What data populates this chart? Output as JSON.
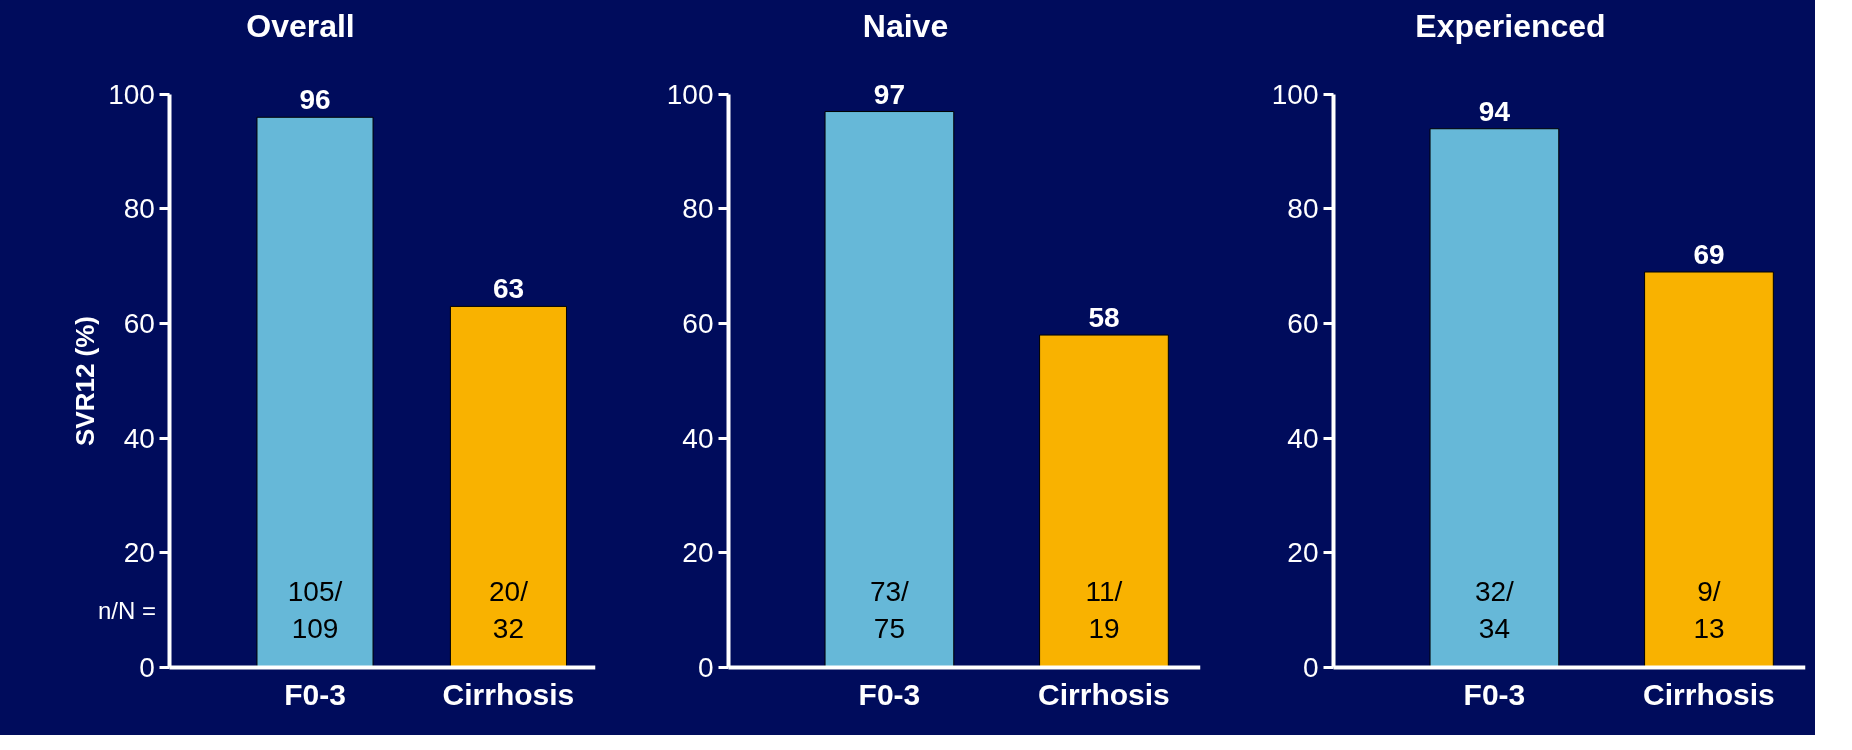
{
  "chart_data": [
    {
      "type": "bar",
      "title": "Overall",
      "ylabel": "SVR12 (%)",
      "categories": [
        "F0-3",
        "Cirrhosis"
      ],
      "values": [
        96,
        63
      ],
      "colors": [
        "#66b8d8",
        "#f9b200"
      ],
      "ylim": [
        0,
        100
      ],
      "yticks": [
        0,
        20,
        40,
        60,
        80,
        100
      ],
      "data_labels": true,
      "annotations": [
        "105/\n109",
        "20/\n32",
        "n/N ="
      ]
    },
    {
      "type": "bar",
      "title": "Naive",
      "categories": [
        "F0-3",
        "Cirrhosis"
      ],
      "values": [
        97,
        58
      ],
      "colors": [
        "#66b8d8",
        "#f9b200"
      ],
      "ylim": [
        0,
        100
      ],
      "yticks": [
        0,
        20,
        40,
        60,
        80,
        100
      ],
      "data_labels": true,
      "annotations": [
        "73/\n75",
        "11/\n19"
      ]
    },
    {
      "type": "bar",
      "title": "Experienced",
      "categories": [
        "F0-3",
        "Cirrhosis"
      ],
      "values": [
        94,
        69
      ],
      "colors": [
        "#66b8d8",
        "#f9b200"
      ],
      "ylim": [
        0,
        100
      ],
      "yticks": [
        0,
        20,
        40,
        60,
        80,
        100
      ],
      "data_labels": true,
      "annotations": [
        "32/\n34",
        "9/\n13"
      ]
    }
  ]
}
